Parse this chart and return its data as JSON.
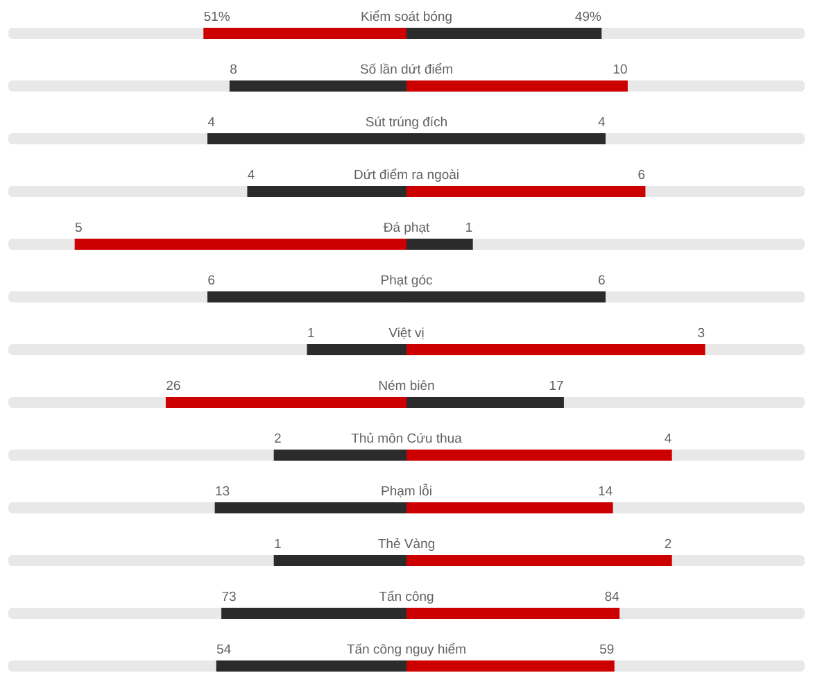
{
  "chart_data": [
    {
      "type": "bar",
      "orientation": "horizontal",
      "stacked": true,
      "categories": [
        "Kiểm soát bóng"
      ],
      "series": [
        {
          "values": [
            51
          ],
          "color": "#cc0000",
          "value_labels": [
            "51%"
          ]
        },
        {
          "values": [
            49
          ],
          "color": "#2b2b2b",
          "value_labels": [
            "49%"
          ]
        }
      ]
    },
    {
      "type": "bar",
      "orientation": "horizontal",
      "stacked": true,
      "categories": [
        "Số lần dứt điểm"
      ],
      "series": [
        {
          "values": [
            8
          ],
          "color": "#2b2b2b",
          "value_labels": [
            "8"
          ]
        },
        {
          "values": [
            10
          ],
          "color": "#cc0000",
          "value_labels": [
            "10"
          ]
        }
      ]
    },
    {
      "type": "bar",
      "orientation": "horizontal",
      "stacked": true,
      "categories": [
        "Sút trúng đích"
      ],
      "series": [
        {
          "values": [
            4
          ],
          "color": "#2b2b2b",
          "value_labels": [
            "4"
          ]
        },
        {
          "values": [
            4
          ],
          "color": "#2b2b2b",
          "value_labels": [
            "4"
          ]
        }
      ]
    },
    {
      "type": "bar",
      "orientation": "horizontal",
      "stacked": true,
      "categories": [
        "Dứt điểm ra ngoài"
      ],
      "series": [
        {
          "values": [
            4
          ],
          "color": "#2b2b2b",
          "value_labels": [
            "4"
          ]
        },
        {
          "values": [
            6
          ],
          "color": "#cc0000",
          "value_labels": [
            "6"
          ]
        }
      ]
    },
    {
      "type": "bar",
      "orientation": "horizontal",
      "stacked": true,
      "categories": [
        "Đá phạt"
      ],
      "series": [
        {
          "values": [
            5
          ],
          "color": "#cc0000",
          "value_labels": [
            "5"
          ]
        },
        {
          "values": [
            1
          ],
          "color": "#2b2b2b",
          "value_labels": [
            "1"
          ]
        }
      ]
    },
    {
      "type": "bar",
      "orientation": "horizontal",
      "stacked": true,
      "categories": [
        "Phạt góc"
      ],
      "series": [
        {
          "values": [
            6
          ],
          "color": "#2b2b2b",
          "value_labels": [
            "6"
          ]
        },
        {
          "values": [
            6
          ],
          "color": "#2b2b2b",
          "value_labels": [
            "6"
          ]
        }
      ]
    },
    {
      "type": "bar",
      "orientation": "horizontal",
      "stacked": true,
      "categories": [
        "Việt vị"
      ],
      "series": [
        {
          "values": [
            1
          ],
          "color": "#2b2b2b",
          "value_labels": [
            "1"
          ]
        },
        {
          "values": [
            3
          ],
          "color": "#cc0000",
          "value_labels": [
            "3"
          ]
        }
      ]
    },
    {
      "type": "bar",
      "orientation": "horizontal",
      "stacked": true,
      "categories": [
        "Ném biên"
      ],
      "series": [
        {
          "values": [
            26
          ],
          "color": "#cc0000",
          "value_labels": [
            "26"
          ]
        },
        {
          "values": [
            17
          ],
          "color": "#2b2b2b",
          "value_labels": [
            "17"
          ]
        }
      ]
    },
    {
      "type": "bar",
      "orientation": "horizontal",
      "stacked": true,
      "categories": [
        "Thủ môn Cứu thua"
      ],
      "series": [
        {
          "values": [
            2
          ],
          "color": "#2b2b2b",
          "value_labels": [
            "2"
          ]
        },
        {
          "values": [
            4
          ],
          "color": "#cc0000",
          "value_labels": [
            "4"
          ]
        }
      ]
    },
    {
      "type": "bar",
      "orientation": "horizontal",
      "stacked": true,
      "categories": [
        "Phạm lỗi"
      ],
      "series": [
        {
          "values": [
            13
          ],
          "color": "#2b2b2b",
          "value_labels": [
            "13"
          ]
        },
        {
          "values": [
            14
          ],
          "color": "#cc0000",
          "value_labels": [
            "14"
          ]
        }
      ]
    },
    {
      "type": "bar",
      "orientation": "horizontal",
      "stacked": true,
      "categories": [
        "Thẻ Vàng"
      ],
      "series": [
        {
          "values": [
            1
          ],
          "color": "#2b2b2b",
          "value_labels": [
            "1"
          ]
        },
        {
          "values": [
            2
          ],
          "color": "#cc0000",
          "value_labels": [
            "2"
          ]
        }
      ]
    },
    {
      "type": "bar",
      "orientation": "horizontal",
      "stacked": true,
      "categories": [
        "Tấn công"
      ],
      "series": [
        {
          "values": [
            73
          ],
          "color": "#2b2b2b",
          "value_labels": [
            "73"
          ]
        },
        {
          "values": [
            84
          ],
          "color": "#cc0000",
          "value_labels": [
            "84"
          ]
        }
      ]
    },
    {
      "type": "bar",
      "orientation": "horizontal",
      "stacked": true,
      "categories": [
        "Tấn công nguy hiểm"
      ],
      "series": [
        {
          "values": [
            54
          ],
          "color": "#2b2b2b",
          "value_labels": [
            "54"
          ]
        },
        {
          "values": [
            59
          ],
          "color": "#cc0000",
          "value_labels": [
            "59"
          ]
        }
      ]
    }
  ]
}
